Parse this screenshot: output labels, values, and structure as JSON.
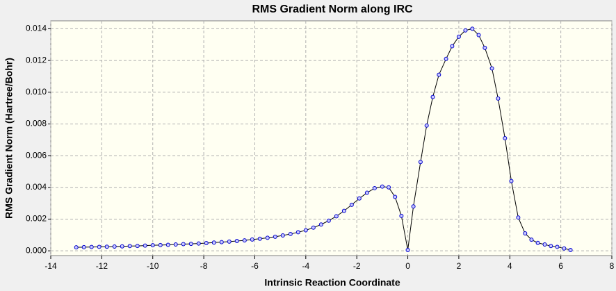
{
  "chart_data": {
    "type": "line",
    "title": "RMS Gradient Norm along IRC",
    "xlabel": "Intrinsic Reaction Coordinate",
    "ylabel": "RMS Gradient Norm (Hartree/Bohr)",
    "x": [
      -13,
      -12.7,
      -12.4,
      -12.1,
      -11.8,
      -11.5,
      -11.2,
      -10.9,
      -10.6,
      -10.3,
      -10,
      -9.7,
      -9.4,
      -9.1,
      -8.8,
      -8.5,
      -8.2,
      -7.9,
      -7.6,
      -7.3,
      -7,
      -6.7,
      -6.4,
      -6.1,
      -5.8,
      -5.5,
      -5.2,
      -4.9,
      -4.6,
      -4.3,
      -4,
      -3.7,
      -3.4,
      -3.1,
      -2.8,
      -2.5,
      -2.2,
      -1.9,
      -1.6,
      -1.3,
      -1.0,
      -0.75,
      -0.5,
      -0.25,
      0,
      0.22,
      0.5,
      0.74,
      0.98,
      1.22,
      1.5,
      1.74,
      2.0,
      2.26,
      2.53,
      2.78,
      3.02,
      3.3,
      3.54,
      3.81,
      4.06,
      4.33,
      4.6,
      4.85,
      5.1,
      5.37,
      5.61,
      5.86,
      6.13,
      6.38
    ],
    "values": [
      0.00022,
      0.00023,
      0.00024,
      0.00025,
      0.00026,
      0.00027,
      0.00028,
      0.0003,
      0.00031,
      0.00033,
      0.00035,
      0.00036,
      0.00038,
      0.0004,
      0.00042,
      0.00044,
      0.00046,
      0.00049,
      0.00052,
      0.00055,
      0.00058,
      0.00062,
      0.00066,
      0.00071,
      0.00076,
      0.00082,
      0.00089,
      0.00097,
      0.00106,
      0.00117,
      0.0013,
      0.00146,
      0.00166,
      0.0019,
      0.00218,
      0.00252,
      0.0029,
      0.0033,
      0.00366,
      0.00395,
      0.00405,
      0.004,
      0.0034,
      0.0022,
      5e-05,
      0.0028,
      0.0056,
      0.0079,
      0.0097,
      0.0111,
      0.0121,
      0.0129,
      0.0135,
      0.0139,
      0.014,
      0.0136,
      0.0128,
      0.0115,
      0.0096,
      0.0071,
      0.0044,
      0.0021,
      0.0011,
      0.0007,
      0.0005,
      0.0004,
      0.0003,
      0.00025,
      0.00015,
      5e-05
    ],
    "line_color": "#000000",
    "marker_color": "#0000cc",
    "xlim": [
      -14,
      8
    ],
    "xticks": [
      -14,
      -12,
      -10,
      -8,
      -6,
      -4,
      -2,
      0,
      2,
      4,
      6,
      8
    ],
    "ylim": [
      -0.0003,
      0.0145
    ],
    "yticks": [
      {
        "value": 0,
        "label": "0.000"
      },
      {
        "value": 0.002,
        "label": "0.002"
      },
      {
        "value": 0.004,
        "label": "0.004"
      },
      {
        "value": 0.006,
        "label": "0.006"
      },
      {
        "value": 0.008,
        "label": "0.008"
      },
      {
        "value": 0.01,
        "label": "0.010"
      },
      {
        "value": 0.012,
        "label": "0.012"
      },
      {
        "value": 0.014,
        "label": "0.014"
      }
    ],
    "grid": true
  }
}
